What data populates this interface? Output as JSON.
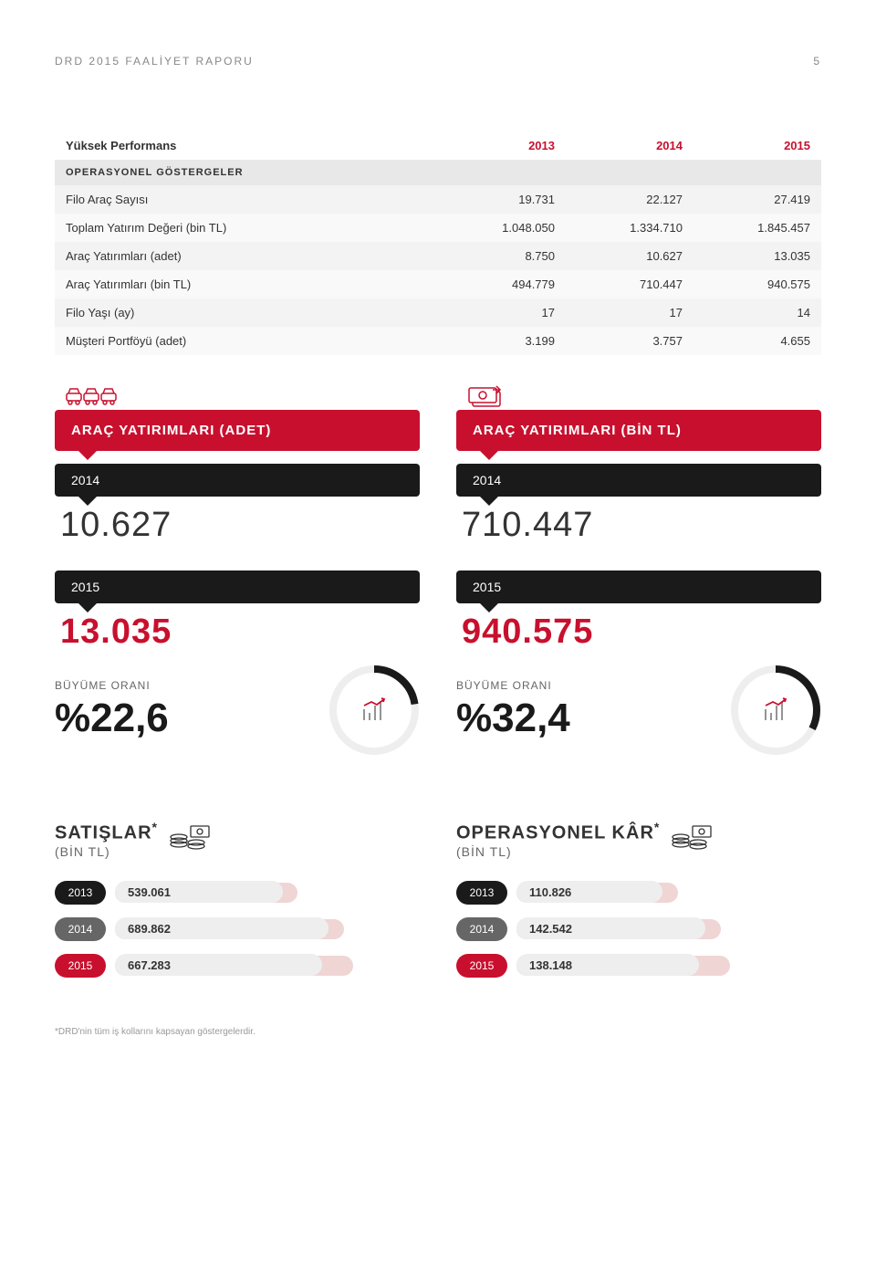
{
  "header": {
    "title": "DRD 2015 FAALİYET RAPORU",
    "page": "5"
  },
  "table": {
    "head": {
      "c0": "Yüksek Performans",
      "c1": "2013",
      "c2": "2014",
      "c3": "2015"
    },
    "sub1": "OPERASYONEL GÖSTERGELER",
    "rows": [
      {
        "l": "Filo Araç Sayısı",
        "v": [
          "19.731",
          "22.127",
          "27.419"
        ]
      },
      {
        "l": "Toplam Yatırım Değeri (bin TL)",
        "v": [
          "1.048.050",
          "1.334.710",
          "1.845.457"
        ]
      },
      {
        "l": "Araç Yatırımları (adet)",
        "v": [
          "8.750",
          "10.627",
          "13.035"
        ]
      },
      {
        "l": "Araç Yatırımları (bin TL)",
        "v": [
          "494.779",
          "710.447",
          "940.575"
        ]
      },
      {
        "l": "Filo Yaşı (ay)",
        "v": [
          "17",
          "17",
          "14"
        ]
      },
      {
        "l": "Müşteri Portföyü (adet)",
        "v": [
          "3.199",
          "3.757",
          "4.655"
        ]
      }
    ]
  },
  "cards": [
    {
      "title": "ARAÇ YATIRIMLARI (ADET)",
      "y2014": "2014",
      "v2014": "10.627",
      "y2015": "2015",
      "v2015": "13.035",
      "glabel": "BÜYÜME ORANI",
      "gval": "%22,6",
      "pct": 22.6,
      "icon": "car"
    },
    {
      "title": "ARAÇ YATIRIMLARI (BİN TL)",
      "y2014": "2014",
      "v2014": "710.447",
      "y2015": "2015",
      "v2015": "940.575",
      "glabel": "BÜYÜME ORANI",
      "gval": "%32,4",
      "pct": 32.4,
      "icon": "money"
    }
  ],
  "mini": [
    {
      "title": "SATIŞLAR",
      "sup": "*",
      "sub": "(BİN TL)",
      "icon": "coins",
      "bars": [
        {
          "year": "2013",
          "val": "539.061",
          "cls": "dark",
          "fill": 55,
          "shadow": 60
        },
        {
          "year": "2014",
          "val": "689.862",
          "cls": "",
          "fill": 70,
          "shadow": 75
        },
        {
          "year": "2015",
          "val": "667.283",
          "cls": "red",
          "fill": 68,
          "shadow": 78
        }
      ]
    },
    {
      "title": "OPERASYONEL KÂR",
      "sup": "*",
      "sub": "(BİN TL)",
      "icon": "coins",
      "bars": [
        {
          "year": "2013",
          "val": "110.826",
          "cls": "dark",
          "fill": 48,
          "shadow": 53
        },
        {
          "year": "2014",
          "val": "142.542",
          "cls": "",
          "fill": 62,
          "shadow": 67
        },
        {
          "year": "2015",
          "val": "138.148",
          "cls": "red",
          "fill": 60,
          "shadow": 70
        }
      ]
    }
  ],
  "footnote": "*DRD'nin tüm iş kollarını kapsayan göstergelerdir.",
  "colors": {
    "red": "#c8102e",
    "dark": "#1a1a1a",
    "gray": "#666"
  }
}
